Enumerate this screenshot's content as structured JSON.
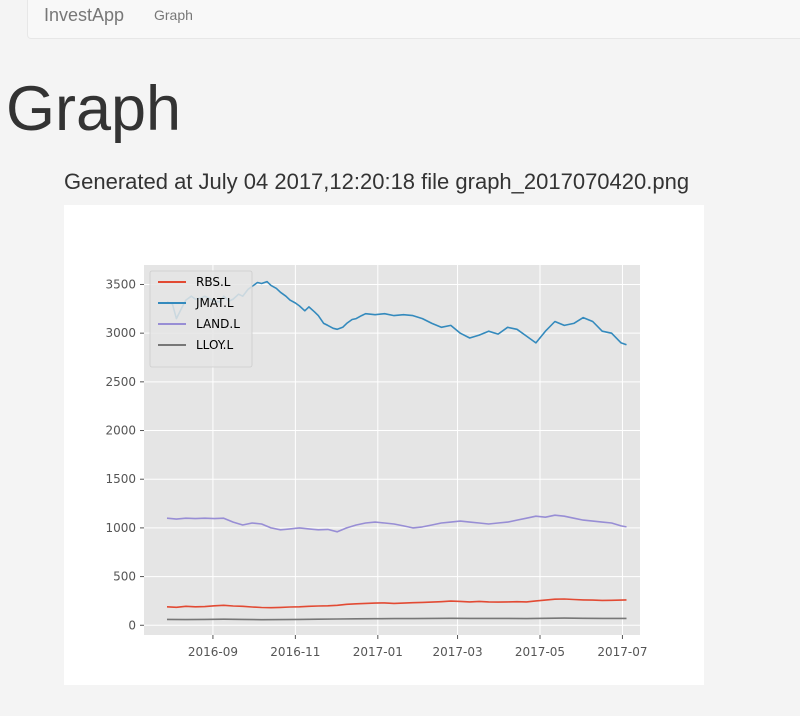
{
  "navbar": {
    "brand": "InvestApp",
    "links": [
      {
        "label": "Graph"
      }
    ]
  },
  "page": {
    "title": "Graph",
    "caption": "Generated at July 04 2017,12:20:18 file graph_2017070420.png"
  },
  "chart_data": {
    "type": "line",
    "title": "",
    "xlabel": "",
    "ylabel": "",
    "xlim": [
      "2016-07-12",
      "2017-07-14"
    ],
    "ylim": [
      -100,
      3700
    ],
    "x_ticks": [
      "2016-09",
      "2016-11",
      "2017-01",
      "2017-03",
      "2017-05",
      "2017-07"
    ],
    "y_ticks": [
      0,
      500,
      1000,
      1500,
      2000,
      2500,
      3000,
      3500
    ],
    "grid": true,
    "legend": "upper-left",
    "colors": {
      "RBS.L": "#e24a33",
      "JMAT.L": "#348abd",
      "LAND.L": "#988ed5",
      "LLOY.L": "#777777"
    },
    "series": [
      {
        "name": "RBS.L",
        "points": [
          [
            "2016-07-29",
            190
          ],
          [
            "2016-08-05",
            185
          ],
          [
            "2016-08-12",
            195
          ],
          [
            "2016-08-19",
            190
          ],
          [
            "2016-08-26",
            192
          ],
          [
            "2016-09-02",
            200
          ],
          [
            "2016-09-09",
            205
          ],
          [
            "2016-09-16",
            198
          ],
          [
            "2016-09-23",
            195
          ],
          [
            "2016-09-30",
            188
          ],
          [
            "2016-10-07",
            182
          ],
          [
            "2016-10-14",
            180
          ],
          [
            "2016-10-21",
            183
          ],
          [
            "2016-10-28",
            188
          ],
          [
            "2016-11-04",
            190
          ],
          [
            "2016-11-11",
            195
          ],
          [
            "2016-11-18",
            198
          ],
          [
            "2016-11-25",
            200
          ],
          [
            "2016-12-02",
            205
          ],
          [
            "2016-12-09",
            215
          ],
          [
            "2016-12-16",
            220
          ],
          [
            "2016-12-23",
            225
          ],
          [
            "2016-12-30",
            228
          ],
          [
            "2017-01-06",
            230
          ],
          [
            "2017-01-13",
            225
          ],
          [
            "2017-01-20",
            228
          ],
          [
            "2017-01-27",
            232
          ],
          [
            "2017-02-03",
            235
          ],
          [
            "2017-02-10",
            238
          ],
          [
            "2017-02-17",
            242
          ],
          [
            "2017-02-24",
            248
          ],
          [
            "2017-03-03",
            245
          ],
          [
            "2017-03-10",
            240
          ],
          [
            "2017-03-17",
            245
          ],
          [
            "2017-03-24",
            240
          ],
          [
            "2017-03-31",
            238
          ],
          [
            "2017-04-07",
            240
          ],
          [
            "2017-04-14",
            242
          ],
          [
            "2017-04-21",
            240
          ],
          [
            "2017-04-28",
            250
          ],
          [
            "2017-05-05",
            258
          ],
          [
            "2017-05-12",
            268
          ],
          [
            "2017-05-19",
            270
          ],
          [
            "2017-05-26",
            265
          ],
          [
            "2017-06-02",
            260
          ],
          [
            "2017-06-09",
            258
          ],
          [
            "2017-06-16",
            255
          ],
          [
            "2017-06-23",
            256
          ],
          [
            "2017-06-30",
            258
          ],
          [
            "2017-07-04",
            260
          ]
        ]
      },
      {
        "name": "JMAT.L",
        "points": [
          [
            "2016-07-29",
            3320
          ],
          [
            "2016-08-02",
            3300
          ],
          [
            "2016-08-05",
            3150
          ],
          [
            "2016-08-09",
            3260
          ],
          [
            "2016-08-12",
            3340
          ],
          [
            "2016-08-16",
            3380
          ],
          [
            "2016-08-19",
            3350
          ],
          [
            "2016-08-23",
            3360
          ],
          [
            "2016-08-26",
            3380
          ],
          [
            "2016-08-30",
            3350
          ],
          [
            "2016-09-02",
            3330
          ],
          [
            "2016-09-06",
            3320
          ],
          [
            "2016-09-09",
            3380
          ],
          [
            "2016-09-13",
            3330
          ],
          [
            "2016-09-16",
            3350
          ],
          [
            "2016-09-20",
            3400
          ],
          [
            "2016-09-23",
            3380
          ],
          [
            "2016-09-27",
            3450
          ],
          [
            "2016-09-30",
            3480
          ],
          [
            "2016-10-04",
            3520
          ],
          [
            "2016-10-07",
            3510
          ],
          [
            "2016-10-11",
            3530
          ],
          [
            "2016-10-14",
            3490
          ],
          [
            "2016-10-18",
            3460
          ],
          [
            "2016-10-21",
            3420
          ],
          [
            "2016-10-25",
            3380
          ],
          [
            "2016-10-28",
            3340
          ],
          [
            "2016-11-01",
            3310
          ],
          [
            "2016-11-04",
            3280
          ],
          [
            "2016-11-08",
            3230
          ],
          [
            "2016-11-11",
            3270
          ],
          [
            "2016-11-15",
            3220
          ],
          [
            "2016-11-18",
            3180
          ],
          [
            "2016-11-22",
            3100
          ],
          [
            "2016-11-25",
            3080
          ],
          [
            "2016-11-29",
            3050
          ],
          [
            "2016-12-02",
            3040
          ],
          [
            "2016-12-06",
            3060
          ],
          [
            "2016-12-09",
            3100
          ],
          [
            "2016-12-13",
            3140
          ],
          [
            "2016-12-16",
            3150
          ],
          [
            "2016-12-20",
            3180
          ],
          [
            "2016-12-23",
            3200
          ],
          [
            "2016-12-30",
            3190
          ],
          [
            "2017-01-06",
            3200
          ],
          [
            "2017-01-13",
            3180
          ],
          [
            "2017-01-20",
            3190
          ],
          [
            "2017-01-27",
            3180
          ],
          [
            "2017-02-03",
            3150
          ],
          [
            "2017-02-10",
            3100
          ],
          [
            "2017-02-17",
            3060
          ],
          [
            "2017-02-24",
            3080
          ],
          [
            "2017-03-03",
            3000
          ],
          [
            "2017-03-10",
            2950
          ],
          [
            "2017-03-17",
            2980
          ],
          [
            "2017-03-24",
            3020
          ],
          [
            "2017-03-31",
            2990
          ],
          [
            "2017-04-07",
            3060
          ],
          [
            "2017-04-14",
            3040
          ],
          [
            "2017-04-21",
            2970
          ],
          [
            "2017-04-28",
            2900
          ],
          [
            "2017-05-05",
            3020
          ],
          [
            "2017-05-12",
            3120
          ],
          [
            "2017-05-19",
            3080
          ],
          [
            "2017-05-26",
            3100
          ],
          [
            "2017-06-02",
            3160
          ],
          [
            "2017-06-09",
            3120
          ],
          [
            "2017-06-16",
            3020
          ],
          [
            "2017-06-23",
            3000
          ],
          [
            "2017-06-30",
            2900
          ],
          [
            "2017-07-04",
            2880
          ]
        ]
      },
      {
        "name": "LAND.L",
        "points": [
          [
            "2016-07-29",
            1100
          ],
          [
            "2016-08-05",
            1090
          ],
          [
            "2016-08-12",
            1100
          ],
          [
            "2016-08-19",
            1095
          ],
          [
            "2016-08-26",
            1100
          ],
          [
            "2016-09-02",
            1095
          ],
          [
            "2016-09-09",
            1100
          ],
          [
            "2016-09-16",
            1060
          ],
          [
            "2016-09-23",
            1030
          ],
          [
            "2016-09-30",
            1050
          ],
          [
            "2016-10-07",
            1040
          ],
          [
            "2016-10-14",
            1000
          ],
          [
            "2016-10-21",
            980
          ],
          [
            "2016-10-28",
            990
          ],
          [
            "2016-11-04",
            1000
          ],
          [
            "2016-11-11",
            990
          ],
          [
            "2016-11-18",
            980
          ],
          [
            "2016-11-25",
            985
          ],
          [
            "2016-12-02",
            960
          ],
          [
            "2016-12-09",
            1000
          ],
          [
            "2016-12-16",
            1030
          ],
          [
            "2016-12-23",
            1050
          ],
          [
            "2016-12-30",
            1060
          ],
          [
            "2017-01-06",
            1050
          ],
          [
            "2017-01-13",
            1040
          ],
          [
            "2017-01-20",
            1020
          ],
          [
            "2017-01-27",
            1000
          ],
          [
            "2017-02-03",
            1010
          ],
          [
            "2017-02-10",
            1030
          ],
          [
            "2017-02-17",
            1050
          ],
          [
            "2017-02-24",
            1060
          ],
          [
            "2017-03-03",
            1070
          ],
          [
            "2017-03-10",
            1060
          ],
          [
            "2017-03-17",
            1050
          ],
          [
            "2017-03-24",
            1040
          ],
          [
            "2017-03-31",
            1050
          ],
          [
            "2017-04-07",
            1060
          ],
          [
            "2017-04-14",
            1080
          ],
          [
            "2017-04-21",
            1100
          ],
          [
            "2017-04-28",
            1120
          ],
          [
            "2017-05-05",
            1110
          ],
          [
            "2017-05-12",
            1130
          ],
          [
            "2017-05-19",
            1120
          ],
          [
            "2017-05-26",
            1100
          ],
          [
            "2017-06-02",
            1080
          ],
          [
            "2017-06-09",
            1070
          ],
          [
            "2017-06-16",
            1060
          ],
          [
            "2017-06-23",
            1050
          ],
          [
            "2017-06-30",
            1020
          ],
          [
            "2017-07-04",
            1010
          ]
        ]
      },
      {
        "name": "LLOY.L",
        "points": [
          [
            "2016-07-29",
            60
          ],
          [
            "2016-08-12",
            58
          ],
          [
            "2016-08-26",
            60
          ],
          [
            "2016-09-09",
            62
          ],
          [
            "2016-09-23",
            60
          ],
          [
            "2016-10-07",
            57
          ],
          [
            "2016-10-21",
            58
          ],
          [
            "2016-11-04",
            60
          ],
          [
            "2016-11-18",
            62
          ],
          [
            "2016-12-02",
            64
          ],
          [
            "2016-12-16",
            66
          ],
          [
            "2016-12-30",
            67
          ],
          [
            "2017-01-13",
            68
          ],
          [
            "2017-01-27",
            68
          ],
          [
            "2017-02-10",
            70
          ],
          [
            "2017-02-24",
            72
          ],
          [
            "2017-03-10",
            70
          ],
          [
            "2017-03-24",
            70
          ],
          [
            "2017-04-07",
            70
          ],
          [
            "2017-04-21",
            68
          ],
          [
            "2017-05-05",
            72
          ],
          [
            "2017-05-19",
            74
          ],
          [
            "2017-06-02",
            72
          ],
          [
            "2017-06-16",
            70
          ],
          [
            "2017-06-30",
            70
          ],
          [
            "2017-07-04",
            70
          ]
        ]
      }
    ]
  }
}
